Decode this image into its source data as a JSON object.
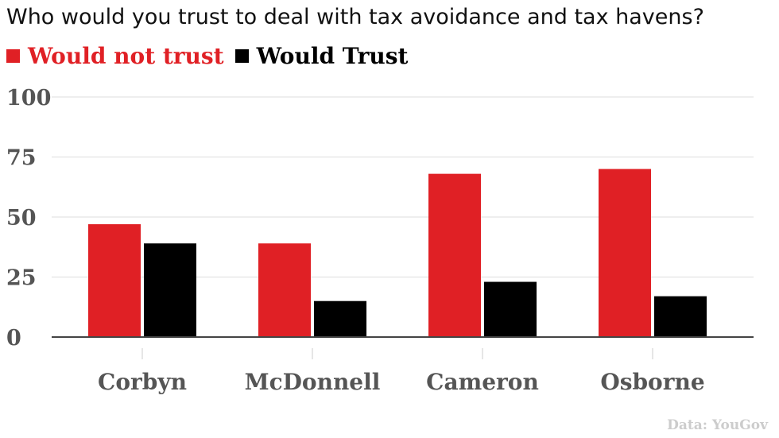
{
  "title": "Who would you trust to deal with tax avoidance and tax havens?",
  "source": "Data: YouGov",
  "colors": {
    "would_not_trust": "#e02025",
    "would_trust": "#000000",
    "axis_text": "#555555",
    "grid": "#dddddd"
  },
  "chart_data": {
    "type": "bar",
    "title": "Who would you trust to deal with tax avoidance and tax havens?",
    "categories": [
      "Corbyn",
      "McDonnell",
      "Cameron",
      "Osborne"
    ],
    "series": [
      {
        "name": "Would not trust",
        "values": [
          47,
          39,
          68,
          70
        ],
        "color": "#e02025"
      },
      {
        "name": "Would Trust",
        "values": [
          39,
          15,
          23,
          17
        ],
        "color": "#000000"
      }
    ],
    "yticks": [
      "0",
      "25",
      "50",
      "75",
      "100"
    ],
    "ylim": [
      0,
      100
    ],
    "grid": true,
    "legend": "top-left"
  }
}
